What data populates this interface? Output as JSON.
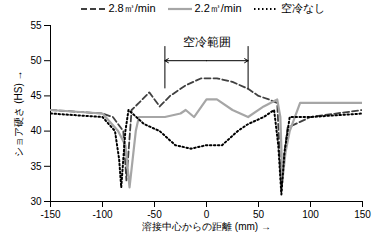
{
  "chart_data": {
    "type": "line",
    "x_label": "溶接中心からの距離 (mm)",
    "y_label": "ショア硬さ (HS)",
    "xlim": [
      -150,
      150
    ],
    "xticks": [
      -150,
      -100,
      -50,
      0,
      50,
      100,
      150
    ],
    "ylim": [
      30,
      55
    ],
    "yticks": [
      30,
      35,
      40,
      45,
      50,
      55
    ],
    "legend": "top",
    "series": [
      {
        "name": "2.8㎥/min",
        "color": "#404040",
        "line_style": "dashed",
        "x": [
          -150,
          -100,
          -90,
          -80,
          -77,
          -72,
          -65,
          -55,
          -45,
          -35,
          -20,
          -5,
          10,
          25,
          40,
          50,
          60,
          68,
          72,
          75,
          78,
          100,
          150
        ],
        "values": [
          43,
          42.5,
          42,
          40,
          33,
          43,
          44,
          45.5,
          43.5,
          45,
          46.5,
          47.5,
          47.5,
          47,
          46,
          45,
          44.5,
          44,
          31.5,
          37,
          40.5,
          42,
          43
        ]
      },
      {
        "name": "2.2㎥/min",
        "color": "#a6a6a6",
        "line_style": "solid",
        "x": [
          -150,
          -100,
          -85,
          -78,
          -74,
          -68,
          -65,
          -40,
          -25,
          -20,
          -12,
          0,
          10,
          25,
          40,
          55,
          68,
          71,
          73,
          76,
          80,
          90,
          150
        ],
        "values": [
          43,
          42.5,
          40,
          38,
          32,
          40,
          42,
          42,
          42.5,
          43,
          42,
          44.5,
          44.5,
          43,
          42,
          43.5,
          44.5,
          42,
          33,
          37,
          40,
          44,
          44
        ]
      },
      {
        "name": "空冷なし",
        "color": "#000000",
        "line_style": "dotted",
        "x": [
          -150,
          -100,
          -88,
          -84,
          -82,
          -78,
          -75,
          -60,
          -45,
          -30,
          -15,
          0,
          15,
          30,
          40,
          55,
          65,
          69,
          72,
          75,
          80,
          100,
          150
        ],
        "values": [
          42.5,
          42,
          40,
          36,
          32,
          40,
          43,
          41,
          40,
          38,
          37.5,
          38,
          38,
          40,
          41,
          42,
          43,
          38,
          31,
          37,
          42,
          42,
          42.5
        ]
      }
    ],
    "annotation": {
      "text": "空冷範囲",
      "x": [
        -40,
        40
      ],
      "y": 50,
      "y_span": [
        46,
        52
      ]
    }
  }
}
